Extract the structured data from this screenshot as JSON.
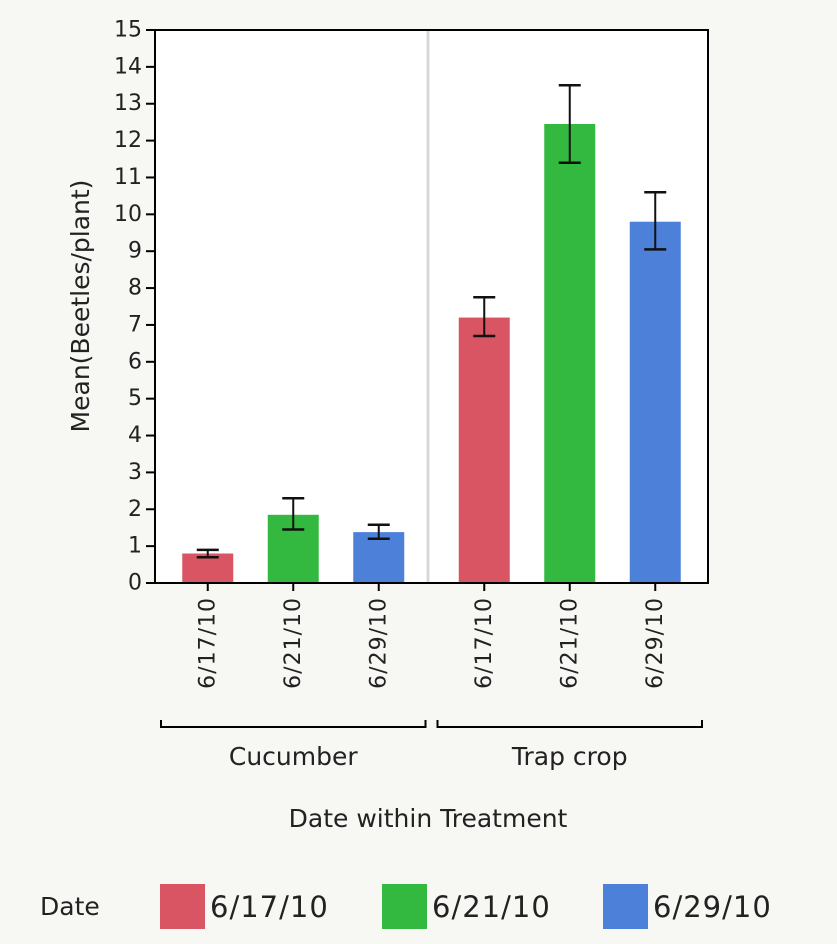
{
  "chart_data": {
    "type": "bar",
    "xlabel": "Date within Treatment",
    "ylabel": "Mean(Beetles/plant)",
    "ylim": [
      0,
      15
    ],
    "yticks": [
      0,
      1,
      2,
      3,
      4,
      5,
      6,
      7,
      8,
      9,
      10,
      11,
      12,
      13,
      14,
      15
    ],
    "groups": [
      {
        "name": "Cucumber",
        "bars": [
          {
            "date": "6/17/10",
            "value": 0.8,
            "err_low": 0.7,
            "err_high": 0.9
          },
          {
            "date": "6/21/10",
            "value": 1.85,
            "err_low": 1.45,
            "err_high": 2.3
          },
          {
            "date": "6/29/10",
            "value": 1.38,
            "err_low": 1.2,
            "err_high": 1.58
          }
        ]
      },
      {
        "name": "Trap crop",
        "bars": [
          {
            "date": "6/17/10",
            "value": 7.2,
            "err_low": 6.7,
            "err_high": 7.75
          },
          {
            "date": "6/21/10",
            "value": 12.45,
            "err_low": 11.4,
            "err_high": 13.5
          },
          {
            "date": "6/29/10",
            "value": 9.8,
            "err_low": 9.05,
            "err_high": 10.6
          }
        ]
      }
    ],
    "legend": {
      "title": "Date",
      "placement": "bottom",
      "entries": [
        {
          "label": "6/17/10",
          "color": "#d95564"
        },
        {
          "label": "6/21/10",
          "color": "#33b840"
        },
        {
          "label": "6/29/10",
          "color": "#4d80d9"
        }
      ]
    },
    "grid": false
  }
}
